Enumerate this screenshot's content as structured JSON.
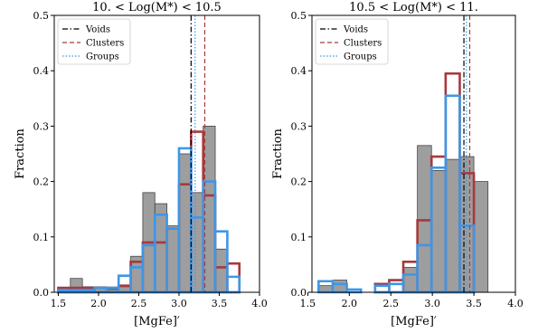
{
  "chart_data": [
    {
      "type": "histogram",
      "title": "10. < Log(M*) < 10.5",
      "xlabel": "[MgFe]′",
      "ylabel": "Fraction",
      "xlim": [
        1.45,
        4.0
      ],
      "ylim": [
        0,
        0.5
      ],
      "xticks": [
        "1.5",
        "2.0",
        "2.5",
        "3.0",
        "3.5",
        "4.0"
      ],
      "yticks": [
        "0.0",
        "0.1",
        "0.2",
        "0.3",
        "0.4",
        "0.5"
      ],
      "legend_position": "top-left",
      "bin_edges": [
        1.5,
        1.65,
        1.8,
        1.95,
        2.1,
        2.25,
        2.4,
        2.55,
        2.7,
        2.85,
        3.0,
        3.15,
        3.3,
        3.45,
        3.6,
        3.75,
        3.9
      ],
      "fill_values": [
        0.0,
        0.025,
        0.01,
        0.01,
        0.005,
        0.01,
        0.065,
        0.18,
        0.16,
        0.12,
        0.25,
        0.18,
        0.3,
        0.078,
        0.0,
        0.0
      ],
      "fill_color": "#9e9e9e",
      "series": [
        {
          "name": "Clusters",
          "color": "#a8393b",
          "values": [
            0.008,
            0.008,
            0.008,
            0.008,
            0.008,
            0.012,
            0.055,
            0.09,
            0.09,
            0.115,
            0.195,
            0.29,
            0.175,
            0.045,
            0.052,
            0.0
          ]
        },
        {
          "name": "Groups",
          "color": "#3e96e6",
          "values": [
            0.004,
            0.004,
            0.004,
            0.008,
            0.008,
            0.03,
            0.045,
            0.085,
            0.14,
            0.115,
            0.26,
            0.135,
            0.2,
            0.11,
            0.028,
            0.0
          ]
        }
      ],
      "vlines": [
        {
          "name": "Voids",
          "x": 3.15,
          "color": "#000000",
          "style": "dashdot"
        },
        {
          "name": "Clusters",
          "x": 3.32,
          "color": "#a8393b",
          "style": "dashed"
        },
        {
          "name": "Groups",
          "x": 3.2,
          "color": "#3e96e6",
          "style": "dotted"
        }
      ]
    },
    {
      "type": "histogram",
      "title": "10.5 < Log(M*) < 11.",
      "xlabel": "[MgFe]′",
      "ylabel": "Fraction",
      "xlim": [
        1.55,
        4.0
      ],
      "ylim": [
        0,
        0.5
      ],
      "xticks": [
        "1.5",
        "2.0",
        "2.5",
        "3.0",
        "3.5",
        "4.0"
      ],
      "yticks": [
        "0.0",
        "0.1",
        "0.2",
        "0.3",
        "0.4",
        "0.5"
      ],
      "legend_position": "top-left",
      "bin_edges": [
        1.63,
        1.8,
        1.97,
        2.14,
        2.31,
        2.48,
        2.65,
        2.82,
        2.99,
        3.16,
        3.33,
        3.5,
        3.67,
        3.84
      ],
      "fill_values": [
        0.012,
        0.022,
        0.0,
        0.0,
        0.0,
        0.0,
        0.045,
        0.265,
        0.22,
        0.24,
        0.245,
        0.2,
        0.0
      ],
      "fill_color": "#9e9e9e",
      "series": [
        {
          "name": "Clusters",
          "color": "#a8393b",
          "values": [
            0.0,
            0.0,
            0.0,
            0.0,
            0.015,
            0.022,
            0.055,
            0.13,
            0.245,
            0.395,
            0.215,
            0.0,
            0.0
          ]
        },
        {
          "name": "Groups",
          "color": "#3e96e6",
          "values": [
            0.02,
            0.015,
            0.005,
            0.0,
            0.012,
            0.015,
            0.032,
            0.085,
            0.225,
            0.355,
            0.12,
            0.0,
            0.0
          ]
        }
      ],
      "vlines": [
        {
          "name": "Voids",
          "x": 3.38,
          "color": "#000000",
          "style": "dashdot"
        },
        {
          "name": "Clusters",
          "x": 3.45,
          "color": "#a8393b",
          "style": "dashed"
        },
        {
          "name": "Groups",
          "x": 3.41,
          "color": "#3e96e6",
          "style": "dotted"
        }
      ]
    }
  ]
}
